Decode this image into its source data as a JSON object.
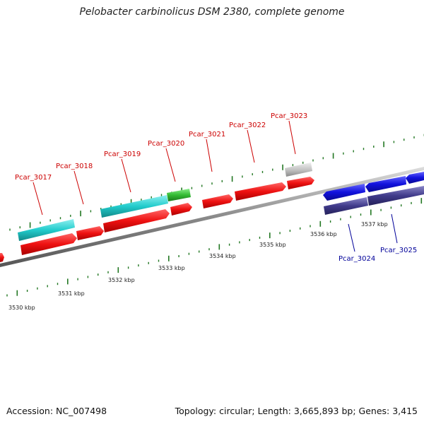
{
  "title": "Pelobacter carbinolicus DSM 2380, complete genome",
  "footer": {
    "accession": "Accession: NC_007498",
    "topology": "Topology: circular; Length: 3,665,893 bp; Genes: 3,415"
  },
  "colors": {
    "forward_label": "#cc0000",
    "reverse_label": "#000099",
    "backbone": "#888888",
    "tick": "#227722",
    "cds_red": "#ee1111",
    "cds_cyan": "#22cccc",
    "cds_green": "#33bb33",
    "cds_grey": "#c0c0c0",
    "cds_blue": "#1111dd",
    "cds_navy": "#3f3a8a"
  },
  "scale_labels": [
    "3530 kbp",
    "3531 kbp",
    "3532 kbp",
    "3533 kbp",
    "3534 kbp",
    "3535 kbp",
    "3536 kbp",
    "3537 kbp"
  ],
  "forward_genes": [
    "Pcar_3017",
    "Pcar_3018",
    "Pcar_3019",
    "Pcar_3020",
    "Pcar_3021",
    "Pcar_3022",
    "Pcar_3023"
  ],
  "reverse_genes": [
    "Pcar_3024",
    "Pcar_3025"
  ]
}
